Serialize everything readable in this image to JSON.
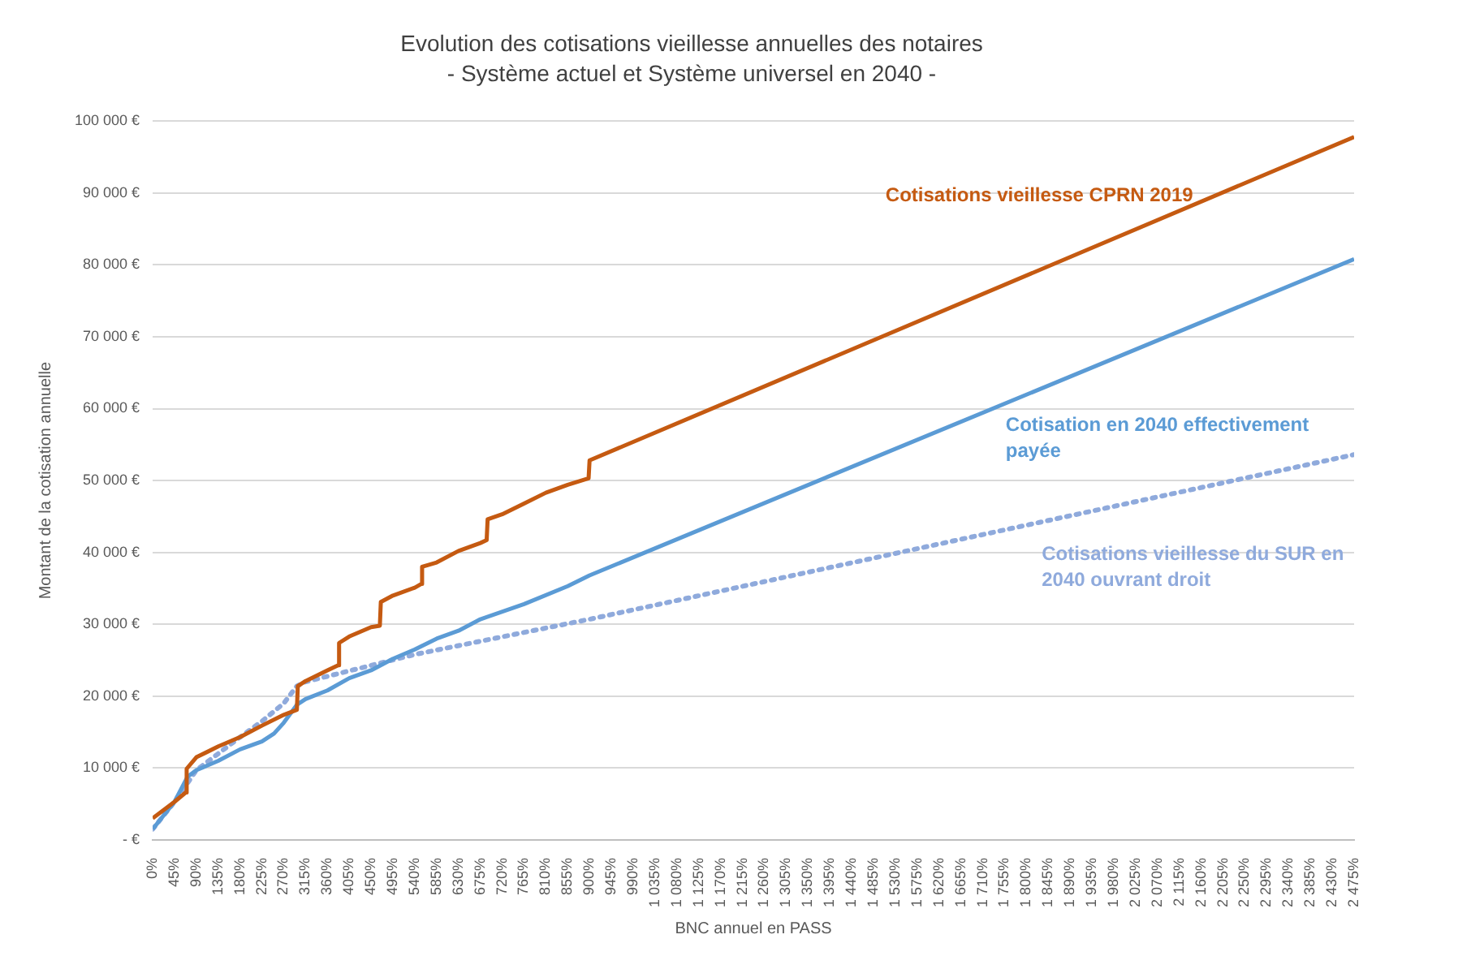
{
  "chart_data": {
    "type": "line",
    "title": "Evolution des cotisations vieillesse annuelles des notaires",
    "subtitle": "- Système actuel et Système universel en 2040 -",
    "xlabel": "BNC annuel en PASS",
    "ylabel": "Montant de la cotisation annuelle",
    "xlim": [
      0,
      2475
    ],
    "xticks": [
      {
        "value": 0,
        "label": "0%"
      },
      {
        "value": 45,
        "label": "45%"
      },
      {
        "value": 90,
        "label": "90%"
      },
      {
        "value": 135,
        "label": "135%"
      },
      {
        "value": 180,
        "label": "180%"
      },
      {
        "value": 225,
        "label": "225%"
      },
      {
        "value": 270,
        "label": "270%"
      },
      {
        "value": 315,
        "label": "315%"
      },
      {
        "value": 360,
        "label": "360%"
      },
      {
        "value": 405,
        "label": "405%"
      },
      {
        "value": 450,
        "label": "450%"
      },
      {
        "value": 495,
        "label": "495%"
      },
      {
        "value": 540,
        "label": "540%"
      },
      {
        "value": 585,
        "label": "585%"
      },
      {
        "value": 630,
        "label": "630%"
      },
      {
        "value": 675,
        "label": "675%"
      },
      {
        "value": 720,
        "label": "720%"
      },
      {
        "value": 765,
        "label": "765%"
      },
      {
        "value": 810,
        "label": "810%"
      },
      {
        "value": 855,
        "label": "855%"
      },
      {
        "value": 900,
        "label": "900%"
      },
      {
        "value": 945,
        "label": "945%"
      },
      {
        "value": 990,
        "label": "990%"
      },
      {
        "value": 1035,
        "label": "1 035%"
      },
      {
        "value": 1080,
        "label": "1 080%"
      },
      {
        "value": 1125,
        "label": "1 125%"
      },
      {
        "value": 1170,
        "label": "1 170%"
      },
      {
        "value": 1215,
        "label": "1 215%"
      },
      {
        "value": 1260,
        "label": "1 260%"
      },
      {
        "value": 1305,
        "label": "1 305%"
      },
      {
        "value": 1350,
        "label": "1 350%"
      },
      {
        "value": 1395,
        "label": "1 395%"
      },
      {
        "value": 1440,
        "label": "1 440%"
      },
      {
        "value": 1485,
        "label": "1 485%"
      },
      {
        "value": 1530,
        "label": "1 530%"
      },
      {
        "value": 1575,
        "label": "1 575%"
      },
      {
        "value": 1620,
        "label": "1 620%"
      },
      {
        "value": 1665,
        "label": "1 665%"
      },
      {
        "value": 1710,
        "label": "1 710%"
      },
      {
        "value": 1755,
        "label": "1 755%"
      },
      {
        "value": 1800,
        "label": "1 800%"
      },
      {
        "value": 1845,
        "label": "1 845%"
      },
      {
        "value": 1890,
        "label": "1 890%"
      },
      {
        "value": 1935,
        "label": "1 935%"
      },
      {
        "value": 1980,
        "label": "1 980%"
      },
      {
        "value": 2025,
        "label": "2 025%"
      },
      {
        "value": 2070,
        "label": "2 070%"
      },
      {
        "value": 2115,
        "label": "2 115%"
      },
      {
        "value": 2160,
        "label": "2 160%"
      },
      {
        "value": 2205,
        "label": "2 205%"
      },
      {
        "value": 2250,
        "label": "2 250%"
      },
      {
        "value": 2295,
        "label": "2 295%"
      },
      {
        "value": 2340,
        "label": "2 340%"
      },
      {
        "value": 2385,
        "label": "2 385%"
      },
      {
        "value": 2430,
        "label": "2 430%"
      },
      {
        "value": 2475,
        "label": "2 475%"
      }
    ],
    "ylim": [
      0,
      100000
    ],
    "yticks": [
      {
        "value": 0,
        "label": "- €"
      },
      {
        "value": 10000,
        "label": "10 000 €"
      },
      {
        "value": 20000,
        "label": "20 000 €"
      },
      {
        "value": 30000,
        "label": "30 000 €"
      },
      {
        "value": 40000,
        "label": "40 000 €"
      },
      {
        "value": 50000,
        "label": "50 000 €"
      },
      {
        "value": 60000,
        "label": "60 000 €"
      },
      {
        "value": 70000,
        "label": "70 000 €"
      },
      {
        "value": 80000,
        "label": "80 000 €"
      },
      {
        "value": 90000,
        "label": "90 000 €"
      },
      {
        "value": 100000,
        "label": "100 000 €"
      }
    ],
    "grid": "y",
    "legend": false,
    "series": [
      {
        "name": "Cotisations vieillesse CPRN 2019",
        "color": "#c55a11",
        "line_style": "solid",
        "x": [
          0,
          45,
          68,
          70,
          90,
          135,
          180,
          225,
          270,
          297,
          299,
          315,
          360,
          382,
          384,
          405,
          450,
          468,
          470,
          495,
          540,
          553,
          555,
          585,
          630,
          675,
          688,
          690,
          720,
          765,
          810,
          855,
          898,
          900,
          2475
        ],
        "values": [
          3000,
          5300,
          6600,
          9900,
          11500,
          13000,
          14300,
          15900,
          17400,
          18100,
          21400,
          22100,
          23600,
          24300,
          27400,
          28300,
          29600,
          29800,
          33100,
          34000,
          35100,
          35600,
          38000,
          38600,
          40200,
          41300,
          41700,
          44600,
          45300,
          46800,
          48300,
          49400,
          50300,
          52800,
          97800
        ]
      },
      {
        "name": "Cotisation en 2040 effectivement payée",
        "color": "#5b9bd5",
        "line_style": "solid",
        "x": [
          0,
          45,
          72,
          90,
          135,
          180,
          225,
          250,
          270,
          297,
          315,
          360,
          405,
          450,
          495,
          540,
          585,
          630,
          675,
          765,
          855,
          900,
          2475
        ],
        "values": [
          1500,
          5300,
          8800,
          9700,
          11000,
          12600,
          13700,
          14800,
          16300,
          18800,
          19600,
          20800,
          22500,
          23600,
          25200,
          26500,
          28000,
          29100,
          30700,
          32800,
          35300,
          36800,
          80800
        ]
      },
      {
        "name": "Cotisations vieillesse du SUR en 2040 ouvrant droit",
        "color": "#8faadc",
        "line_style": "dotted",
        "x": [
          0,
          45,
          90,
          135,
          180,
          225,
          270,
          297,
          315,
          540,
          900,
          2475
        ],
        "values": [
          1500,
          5300,
          9700,
          12000,
          14300,
          16500,
          19000,
          21400,
          22000,
          25800,
          30700,
          53600
        ]
      }
    ]
  }
}
